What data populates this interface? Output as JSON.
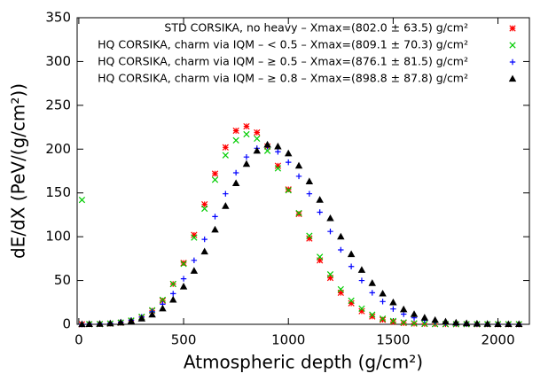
{
  "chart_data": {
    "type": "scatter",
    "xlabel": "Atmospheric depth (g/cm²)",
    "ylabel": "dE/dX (PeV/(g/cm²))",
    "x": [
      15,
      50,
      100,
      150,
      200,
      250,
      300,
      350,
      400,
      450,
      500,
      550,
      600,
      650,
      700,
      750,
      800,
      850,
      900,
      950,
      1000,
      1050,
      1100,
      1150,
      1200,
      1250,
      1300,
      1350,
      1400,
      1450,
      1500,
      1550,
      1600,
      1650,
      1700,
      1750,
      1800,
      1850,
      1900,
      1950,
      2000,
      2050,
      2100
    ],
    "series": [
      {
        "name": "STD CORSIKA, no heavy – Xmax=(802.0 ± 63.5) g/cm²",
        "color": "#ff0000",
        "marker": "star",
        "values": [
          0,
          0.1,
          0.3,
          0.8,
          1.8,
          4.0,
          8.1,
          15.5,
          27,
          46,
          70,
          102,
          137,
          172,
          202,
          221,
          226,
          219,
          203,
          181,
          154,
          126,
          98,
          73,
          53,
          36,
          24,
          15,
          9,
          5.2,
          2.8,
          1.5,
          0.8,
          0.4,
          0.2,
          0.1,
          0.1,
          0.1,
          0,
          0,
          0,
          0,
          0
        ]
      },
      {
        "name": "HQ CORSIKA, charm via IQM – < 0.5 – Xmax=(809.1 ± 70.3) g/cm²",
        "color": "#00cc00",
        "marker": "cross",
        "values": [
          142,
          0.1,
          0.3,
          0.9,
          2,
          4.3,
          8.6,
          16,
          28,
          46,
          69,
          99,
          132,
          165,
          193,
          210,
          217,
          212,
          198,
          178,
          153,
          127,
          101,
          77,
          57,
          40,
          27,
          18,
          11,
          6.5,
          3.8,
          2.1,
          1.1,
          0.6,
          0.3,
          0.2,
          0.1,
          0.1,
          0.1,
          0.1,
          0.1,
          0.1,
          0.1
        ]
      },
      {
        "name": "HQ CORSIKA, charm via IQM – ≥ 0.5 – Xmax=(876.1 ± 81.5) g/cm²",
        "color": "#0000ff",
        "marker": "plus",
        "values": [
          0,
          0.3,
          0.6,
          1.3,
          2.6,
          4.8,
          8.4,
          14.3,
          23,
          35,
          52,
          73,
          97,
          123,
          149,
          173,
          191,
          201,
          203,
          197,
          185,
          169,
          149,
          128,
          106,
          85,
          66,
          50,
          36,
          26,
          17.5,
          11.6,
          7.4,
          4.6,
          2.8,
          1.6,
          0.9,
          0.5,
          0.3,
          0.2,
          0.1,
          0.1,
          0
        ]
      },
      {
        "name": "HQ CORSIKA, charm via IQM – ≥ 0.8 – Xmax=(898.8 ± 87.8) g/cm²",
        "color": "#000000",
        "marker": "triangle",
        "values": [
          0,
          0.2,
          0.4,
          0.9,
          1.9,
          3.6,
          6.5,
          11,
          18,
          28,
          43,
          61,
          83,
          108,
          135,
          161,
          183,
          198,
          205,
          203,
          195,
          181,
          163,
          142,
          121,
          100,
          80,
          62,
          47,
          35,
          25,
          17,
          11.5,
          7.5,
          4.8,
          3,
          1.8,
          1.1,
          0.7,
          0.4,
          0.2,
          0.1,
          0.1
        ]
      }
    ],
    "xlim": [
      -8,
      2150
    ],
    "ylim": [
      0,
      350
    ],
    "xticks": [
      0,
      500,
      1000,
      1500,
      2000
    ],
    "yticks": [
      0,
      50,
      100,
      150,
      200,
      250,
      300,
      350
    ],
    "legend": "top-right"
  }
}
